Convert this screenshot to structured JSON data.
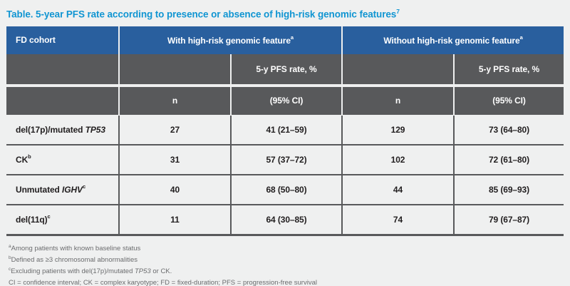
{
  "title": {
    "text": "Table. 5-year PFS rate according to presence or absence of high-risk genomic features",
    "sup": "7"
  },
  "table": {
    "header": {
      "fd_cohort": "FD cohort",
      "with_group": {
        "text": "With high-risk genomic feature",
        "sup": "a"
      },
      "without_group": {
        "text": "Without high-risk genomic feature",
        "sup": "a"
      },
      "pfs_rate_label": "5-y PFS rate, %",
      "n_label": "n",
      "ci_label": "(95% CI)"
    },
    "rows": [
      {
        "label_pre": "del(17p)/mutated ",
        "label_italic": "TP53",
        "label_sup": "",
        "n_with": "27",
        "ci_with": "41 (21–59)",
        "n_without": "129",
        "ci_without": "73 (64–80)"
      },
      {
        "label_pre": "CK",
        "label_italic": "",
        "label_sup": "b",
        "n_with": "31",
        "ci_with": "57 (37–72)",
        "n_without": "102",
        "ci_without": "72 (61–80)"
      },
      {
        "label_pre": "Unmutated ",
        "label_italic": "IGHV",
        "label_sup": "c",
        "n_with": "40",
        "ci_with": "68 (50–80)",
        "n_without": "44",
        "ci_without": "85 (69–93)"
      },
      {
        "label_pre": "del(11q)",
        "label_italic": "",
        "label_sup": "c",
        "n_with": "11",
        "ci_with": "64 (30–85)",
        "n_without": "74",
        "ci_without": "79 (67–87)"
      }
    ]
  },
  "footnotes": [
    {
      "sup": "a",
      "pre": "Among patients with known baseline status",
      "italic": "",
      "post": ""
    },
    {
      "sup": "b",
      "pre": "Defined as ≥3 chromosomal abnormalities",
      "italic": "",
      "post": ""
    },
    {
      "sup": "c",
      "pre": "Excluding patients with del(17p)/mutated ",
      "italic": "TP53",
      "post": " or CK."
    },
    {
      "sup": "",
      "pre": "CI = confidence interval; CK = complex karyotype; FD = fixed-duration; PFS = progression-free survival",
      "italic": "",
      "post": ""
    }
  ],
  "colors": {
    "title_accent": "#1095d2",
    "header_blue": "#295f9e",
    "header_gray": "#58595b",
    "page_bg": "#eff0f0",
    "data_text": "#232021",
    "footnote_text": "#6b6c6e"
  }
}
